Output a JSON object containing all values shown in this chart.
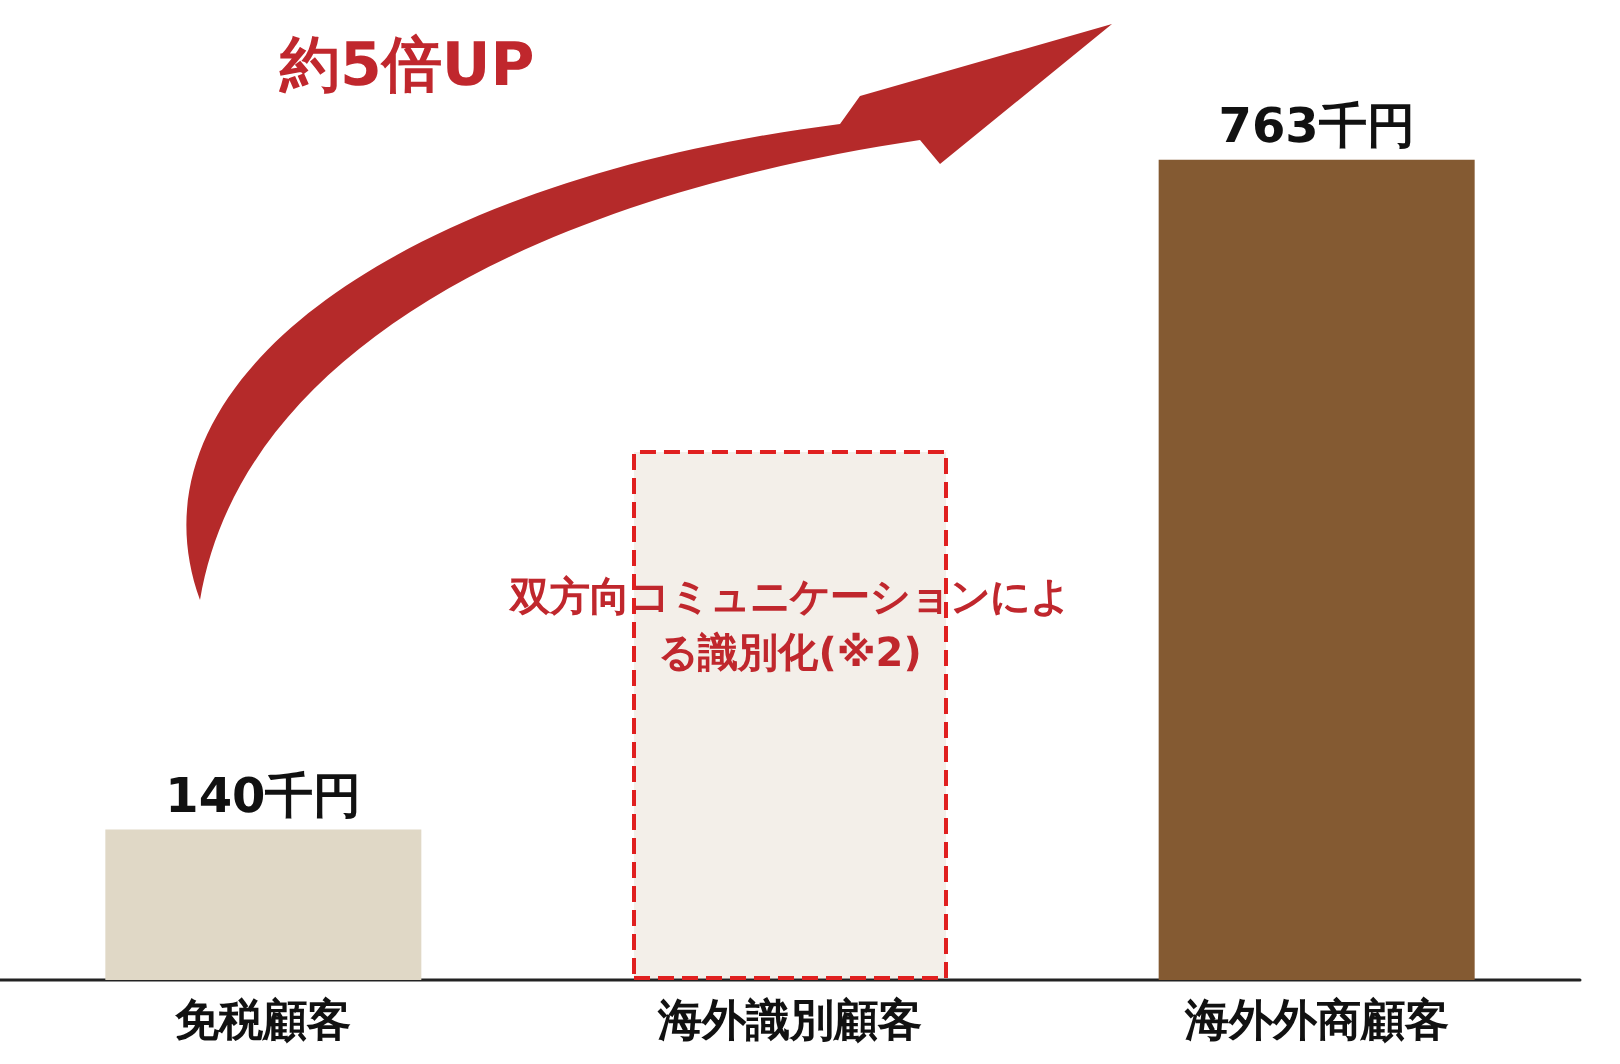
{
  "chart_data": {
    "type": "bar",
    "categories": [
      "免税顧客",
      "海外識別顧客",
      "海外外商顧客"
    ],
    "values": [
      140,
      493,
      763
    ],
    "colors": [
      "#e0d8c6",
      "#f3efe9",
      "#845a32"
    ],
    "value_labels": [
      "140千円",
      null,
      "763千円"
    ],
    "annotations": [
      "約5倍UP",
      "双方向コミュニケーションによる識別化(※2)"
    ]
  }
}
